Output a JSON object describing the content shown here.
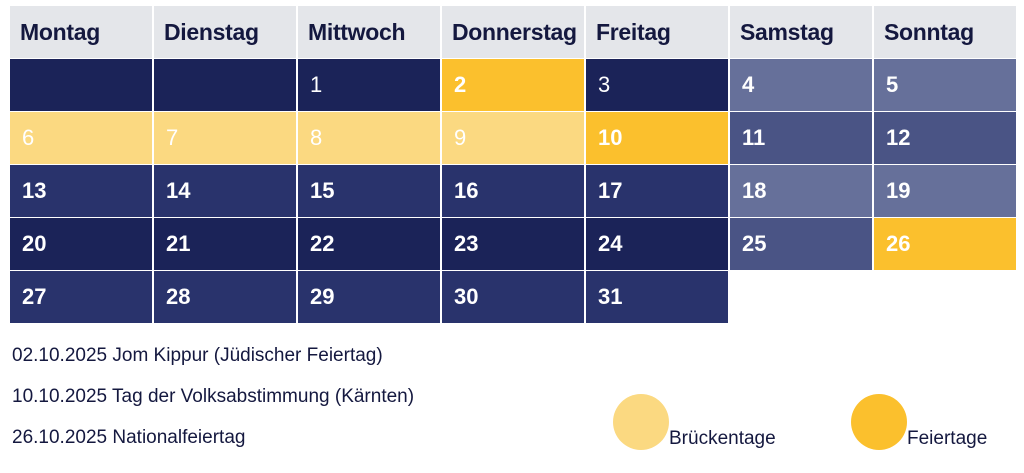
{
  "weekdays": [
    "Montag",
    "Dienstag",
    "Mittwoch",
    "Donnerstag",
    "Freitag",
    "Samstag",
    "Sonntag"
  ],
  "rows": [
    [
      "",
      "",
      "1",
      "2",
      "3",
      "4",
      "5"
    ],
    [
      "6",
      "7",
      "8",
      "9",
      "10",
      "11",
      "12"
    ],
    [
      "13",
      "14",
      "15",
      "16",
      "17",
      "18",
      "19"
    ],
    [
      "20",
      "21",
      "22",
      "23",
      "24",
      "25",
      "26"
    ],
    [
      "27",
      "28",
      "29",
      "30",
      "31",
      "",
      ""
    ]
  ],
  "holidays": [
    "02.10.2025 Jom Kippur (Jüdischer Feiertag)",
    "10.10.2025 Tag der Volksabstimmung (Kärnten)",
    "26.10.2025 Nationalfeiertag"
  ],
  "legend": {
    "bridge_label": "Brückentage",
    "holiday_label": "Feiertage"
  },
  "colors": {
    "weekday_cell": "#1b2358",
    "weekend_cell": "#66709a",
    "bridge_day": "#fbd981",
    "public_holiday": "#fbc02d",
    "header_bg": "#e4e6ea",
    "text_dark": "#14183f"
  }
}
